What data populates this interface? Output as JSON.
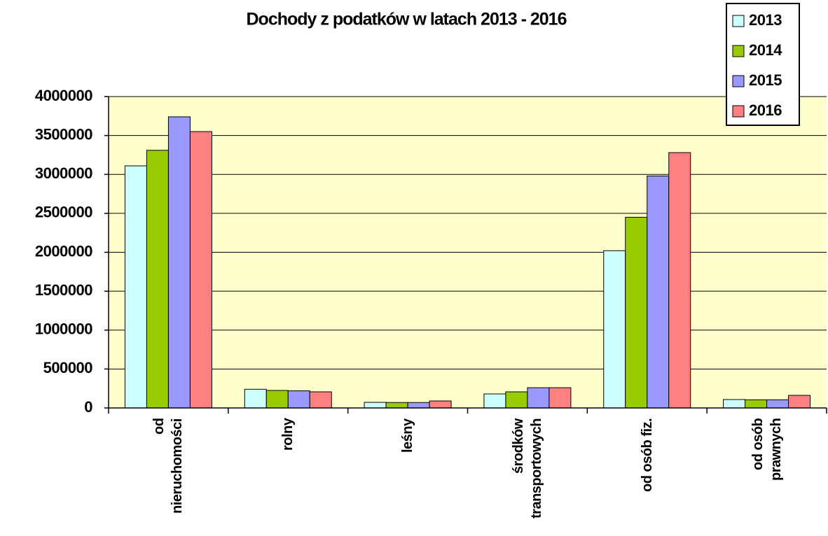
{
  "chart_data": {
    "type": "bar",
    "title": "Dochody z podatków w latach 2013 - 2016",
    "categories": [
      "od nieruchomości",
      "rolny",
      "leśny",
      "środków transportowych",
      "od osób fiz.",
      "od osób prawnych"
    ],
    "series": [
      {
        "name": "2013",
        "color": "#ccffff",
        "values": [
          3110000,
          240000,
          72000,
          180000,
          2020000,
          108000
        ]
      },
      {
        "name": "2014",
        "color": "#99cc00",
        "values": [
          3310000,
          225000,
          70000,
          207000,
          2450000,
          105000
        ]
      },
      {
        "name": "2015",
        "color": "#9999ff",
        "values": [
          3740000,
          220000,
          70000,
          260000,
          2980000,
          105000
        ]
      },
      {
        "name": "2016",
        "color": "#ff8080",
        "values": [
          3550000,
          207000,
          90000,
          260000,
          3280000,
          162000
        ]
      }
    ],
    "ylim": [
      0,
      4000000
    ],
    "yticks": [
      0,
      500000,
      1000000,
      1500000,
      2000000,
      2500000,
      3000000,
      3500000,
      4000000
    ],
    "grid": true,
    "plot_background": "#ffffcc",
    "legend": "upper right"
  }
}
